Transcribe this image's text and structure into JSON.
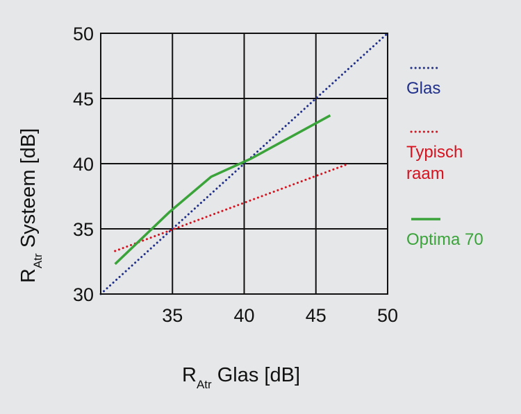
{
  "chart_data": {
    "type": "line",
    "xlabel": {
      "main": "R",
      "sub": "Atr",
      "rest": " Glas [dB]"
    },
    "ylabel": {
      "main": "R",
      "sub": "Atr",
      "rest": " Systeem [dB]"
    },
    "xlim": [
      30,
      50
    ],
    "ylim": [
      30,
      50
    ],
    "x_ticks": [
      35,
      40,
      45,
      50
    ],
    "y_ticks": [
      30,
      35,
      40,
      45,
      50
    ],
    "grid": true,
    "legend_position": "right",
    "series": [
      {
        "name": "Glas",
        "color": "#1f2f8a",
        "style": "dotted",
        "x": [
          30,
          50
        ],
        "y": [
          30,
          50
        ]
      },
      {
        "name": "Typisch raam",
        "legend_lines": [
          "Typisch",
          "raam"
        ],
        "color": "#d6121f",
        "style": "dotted",
        "x": [
          31,
          47.3
        ],
        "y": [
          33.3,
          40
        ]
      },
      {
        "name": "Optima 70",
        "color": "#3aa33a",
        "style": "solid",
        "x": [
          31,
          34.8,
          37.7,
          40.5,
          46
        ],
        "y": [
          32.3,
          36.3,
          39,
          40.4,
          43.7
        ]
      }
    ]
  }
}
